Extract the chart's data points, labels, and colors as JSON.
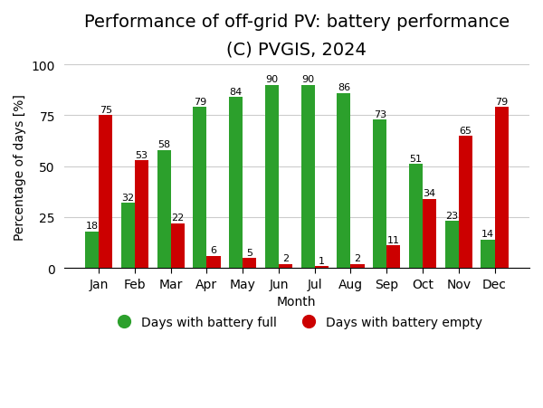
{
  "title": "Performance of off-grid PV: battery performance",
  "subtitle": "(C) PVGIS, 2024",
  "xlabel": "Month",
  "ylabel": "Percentage of days [%]",
  "months": [
    "Jan",
    "Feb",
    "Mar",
    "Apr",
    "May",
    "Jun",
    "Jul",
    "Aug",
    "Sep",
    "Oct",
    "Nov",
    "Dec"
  ],
  "battery_full": [
    18,
    32,
    58,
    79,
    84,
    90,
    90,
    86,
    73,
    51,
    23,
    14
  ],
  "battery_empty": [
    75,
    53,
    22,
    6,
    5,
    2,
    1,
    2,
    11,
    34,
    65,
    79
  ],
  "color_full": "#2ca02c",
  "color_empty": "#cc0000",
  "ylim": [
    0,
    100
  ],
  "yticks": [
    0,
    25,
    50,
    75,
    100
  ],
  "bar_width": 0.38,
  "legend_full": "Days with battery full",
  "legend_empty": "Days with battery empty",
  "background_color": "#ffffff",
  "grid_color": "#cccccc",
  "title_fontsize": 14,
  "subtitle_fontsize": 10,
  "label_fontsize": 10,
  "tick_fontsize": 10,
  "bar_label_fontsize": 8,
  "legend_fontsize": 10,
  "legend_marker_size": 12
}
